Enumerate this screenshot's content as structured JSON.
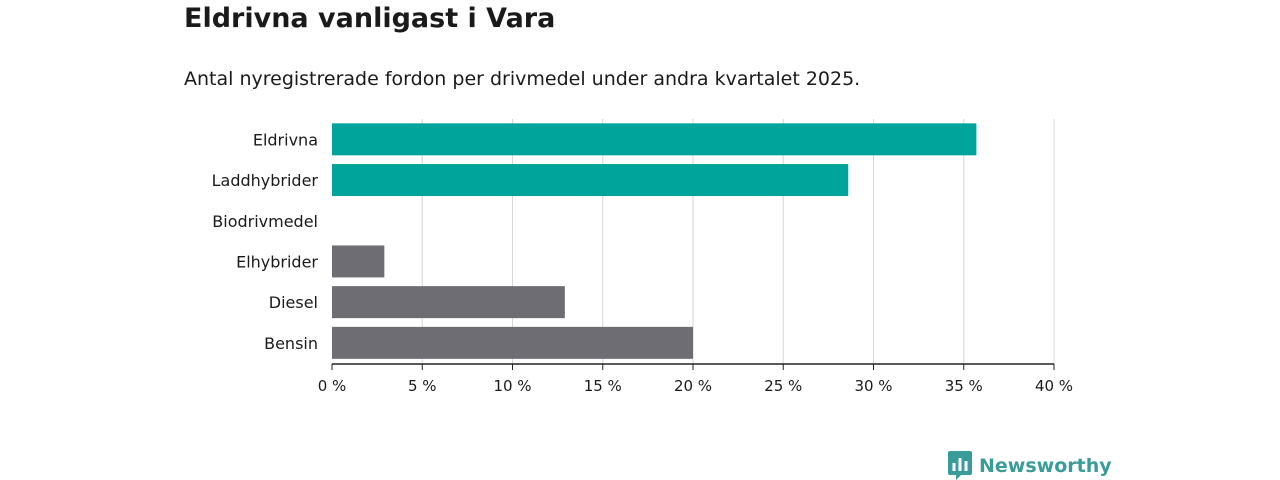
{
  "title": "Eldrivna vanligast i Vara",
  "subtitle": "Antal nyregistrerade fordon per drivmedel under andra kvartalet 2025.",
  "brand": {
    "name": "Newsworthy",
    "icon": "newsworthy-logo-icon",
    "color": "#3a9c98"
  },
  "colors": {
    "highlight": "#00a49a",
    "default": "#6e6d73",
    "grid": "#d6d6d6",
    "axis": "#222222"
  },
  "chart_data": {
    "type": "bar",
    "orientation": "horizontal",
    "categories": [
      "Eldrivna",
      "Laddhybrider",
      "Biodrivmedel",
      "Elhybrider",
      "Diesel",
      "Bensin"
    ],
    "values": [
      35.7,
      28.6,
      0,
      2.9,
      12.9,
      20.0
    ],
    "highlighted": [
      "Eldrivna",
      "Laddhybrider"
    ],
    "xlim": [
      0,
      40
    ],
    "xticks": [
      0,
      5,
      10,
      15,
      20,
      25,
      30,
      35,
      40
    ],
    "tick_labels": [
      "0 %",
      "5 %",
      "10 %",
      "15 %",
      "20 %",
      "25 %",
      "30 %",
      "35 %",
      "40 %"
    ],
    "grid": "vertical"
  }
}
